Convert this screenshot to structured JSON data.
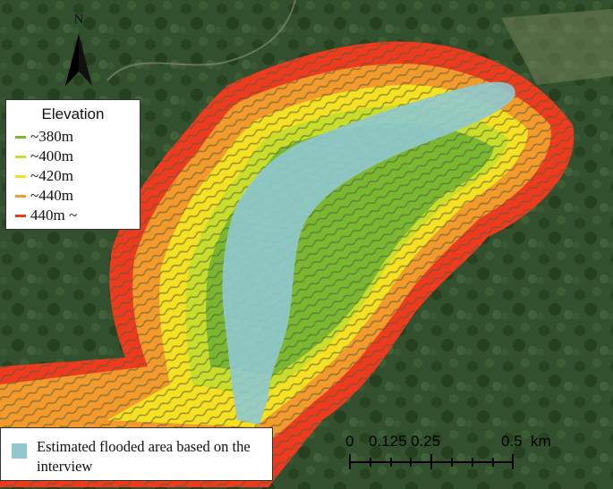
{
  "legend": {
    "title": "Elevation",
    "items": [
      {
        "label": "~380m",
        "color": "#7cb82f"
      },
      {
        "label": "~400m",
        "color": "#c9de2a"
      },
      {
        "label": "~420m",
        "color": "#f5e021"
      },
      {
        "label": "~440m",
        "color": "#f39a2a"
      },
      {
        "label": "440m ~",
        "color": "#ef3b1d"
      }
    ]
  },
  "flood_legend": {
    "label": "Estimated flooded area based on the interview",
    "color": "#8fc9cf"
  },
  "north_arrow": {
    "label": "N"
  },
  "scale_bar": {
    "labels": [
      "0",
      "0.125",
      "0.25",
      "0.5",
      "km"
    ]
  }
}
